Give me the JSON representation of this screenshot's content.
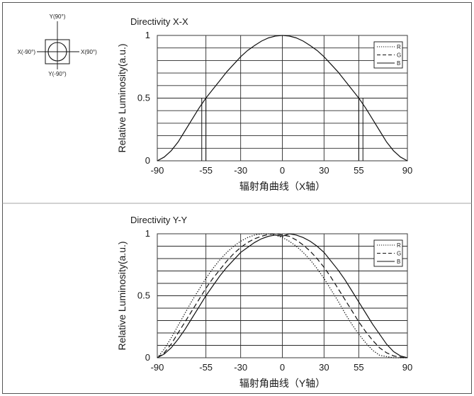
{
  "orientation_diagram": {
    "top": "Y(90°)",
    "bottom": "Y(-90°)",
    "left": "X(-90°)",
    "right": "X(90°)"
  },
  "chart_data": [
    {
      "type": "line",
      "title": "Directivity X-X",
      "xlabel": "辐射角曲线（X轴）",
      "ylabel": "Relative Luminosity(a.u.)",
      "xlim": [
        -90,
        90
      ],
      "ylim": [
        0,
        1
      ],
      "x_ticks": [
        "-90",
        "-55",
        "-30",
        "0",
        "30",
        "55",
        "90"
      ],
      "y_ticks": [
        "0",
        "0.5",
        "1"
      ],
      "grid": true,
      "legend": {
        "placement": "top-right",
        "entries": [
          {
            "label": "R",
            "style": "dotted"
          },
          {
            "label": "G",
            "style": "dashed"
          },
          {
            "label": "B",
            "style": "solid"
          }
        ]
      },
      "x": [
        -90,
        -85,
        -80,
        -75,
        -70,
        -65,
        -60,
        -55,
        -50,
        -45,
        -40,
        -35,
        -30,
        -25,
        -20,
        -15,
        -10,
        -5,
        0,
        5,
        10,
        15,
        20,
        25,
        30,
        35,
        40,
        45,
        50,
        55,
        60,
        65,
        70,
        75,
        80,
        85,
        90
      ],
      "series": [
        {
          "style": "solid",
          "values": [
            0,
            0.03,
            0.08,
            0.15,
            0.24,
            0.33,
            0.42,
            0.5,
            0.57,
            0.64,
            0.71,
            0.77,
            0.83,
            0.88,
            0.92,
            0.955,
            0.98,
            0.995,
            1,
            0.995,
            0.98,
            0.955,
            0.92,
            0.88,
            0.83,
            0.77,
            0.71,
            0.64,
            0.57,
            0.5,
            0.42,
            0.33,
            0.24,
            0.15,
            0.08,
            0.03,
            0
          ]
        }
      ],
      "markers": [
        {
          "x": -58,
          "y": 0.5
        },
        {
          "x": -55,
          "y": 0.5
        },
        {
          "x": 55,
          "y": 0.5
        },
        {
          "x": 58,
          "y": 0.5
        }
      ]
    },
    {
      "type": "line",
      "title": "Directivity Y-Y",
      "xlabel": "辐射角曲线（Y轴）",
      "ylabel": "Relative Luminosity(a.u.)",
      "xlim": [
        -90,
        90
      ],
      "ylim": [
        0,
        1
      ],
      "x_ticks": [
        "-90",
        "-55",
        "-30",
        "0",
        "30",
        "55",
        "90"
      ],
      "y_ticks": [
        "0",
        "0.5",
        "1"
      ],
      "grid": true,
      "legend": {
        "placement": "top-right",
        "entries": [
          {
            "label": "R",
            "style": "dotted"
          },
          {
            "label": "G",
            "style": "dashed"
          },
          {
            "label": "B",
            "style": "solid"
          }
        ]
      },
      "x": [
        -90,
        -85,
        -80,
        -75,
        -70,
        -65,
        -60,
        -55,
        -50,
        -45,
        -40,
        -35,
        -30,
        -25,
        -20,
        -15,
        -10,
        -5,
        0,
        5,
        10,
        15,
        20,
        25,
        30,
        35,
        40,
        45,
        50,
        55,
        60,
        65,
        70,
        75,
        80,
        85,
        90
      ],
      "series": [
        {
          "name": "R",
          "style": "dotted",
          "values": [
            0,
            0.07,
            0.16,
            0.26,
            0.36,
            0.46,
            0.55,
            0.64,
            0.72,
            0.79,
            0.85,
            0.9,
            0.94,
            0.97,
            0.99,
            1,
            1,
            0.99,
            0.97,
            0.94,
            0.9,
            0.85,
            0.79,
            0.72,
            0.64,
            0.55,
            0.46,
            0.36,
            0.27,
            0.19,
            0.12,
            0.06,
            0.02,
            0.01,
            0,
            0,
            0
          ]
        },
        {
          "name": "G",
          "style": "dashed",
          "values": [
            0,
            0.04,
            0.11,
            0.2,
            0.29,
            0.38,
            0.47,
            0.56,
            0.64,
            0.71,
            0.78,
            0.84,
            0.89,
            0.93,
            0.96,
            0.98,
            0.995,
            1,
            0.99,
            0.98,
            0.95,
            0.91,
            0.86,
            0.8,
            0.73,
            0.65,
            0.56,
            0.47,
            0.38,
            0.29,
            0.21,
            0.14,
            0.08,
            0.04,
            0.015,
            0.005,
            0
          ]
        },
        {
          "name": "B",
          "style": "solid",
          "values": [
            0,
            0.03,
            0.08,
            0.15,
            0.23,
            0.32,
            0.41,
            0.5,
            0.58,
            0.66,
            0.73,
            0.79,
            0.85,
            0.89,
            0.93,
            0.96,
            0.98,
            0.99,
            0.98,
            1,
            0.99,
            0.97,
            0.94,
            0.9,
            0.85,
            0.78,
            0.71,
            0.63,
            0.54,
            0.45,
            0.36,
            0.27,
            0.19,
            0.11,
            0.05,
            0.015,
            0
          ]
        }
      ]
    }
  ]
}
